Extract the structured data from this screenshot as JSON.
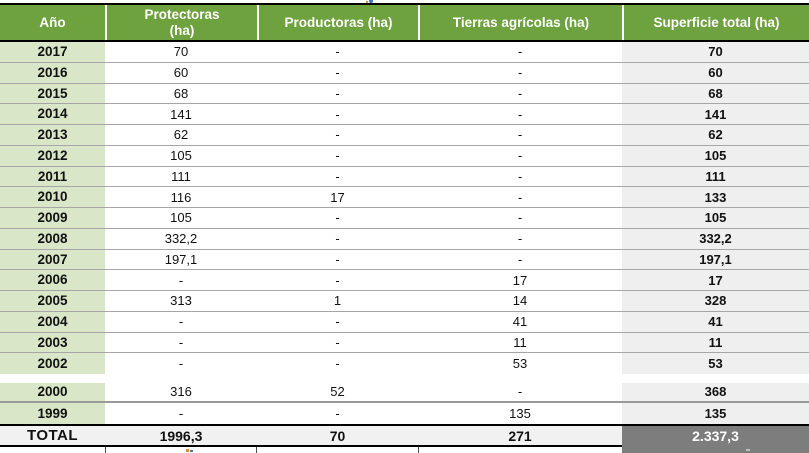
{
  "table": {
    "headers": [
      {
        "id": "year",
        "label": "Año"
      },
      {
        "id": "protectoras",
        "label": "Protectoras\n(ha)"
      },
      {
        "id": "productoras",
        "label": "Productoras (ha)"
      },
      {
        "id": "tierras",
        "label": "Tierras agrícolas (ha)"
      },
      {
        "id": "total",
        "label": "Superficie total (ha)"
      }
    ],
    "rows": [
      {
        "year": "2017",
        "protectoras": "70",
        "productoras": "-",
        "tierras": "-",
        "total": "70"
      },
      {
        "year": "2016",
        "protectoras": "60",
        "productoras": "-",
        "tierras": "-",
        "total": "60"
      },
      {
        "year": "2015",
        "protectoras": "68",
        "productoras": "-",
        "tierras": "-",
        "total": "68"
      },
      {
        "year": "2014",
        "protectoras": "141",
        "productoras": "-",
        "tierras": "-",
        "total": "141"
      },
      {
        "year": "2013",
        "protectoras": "62",
        "productoras": "-",
        "tierras": "-",
        "total": "62"
      },
      {
        "year": "2012",
        "protectoras": "105",
        "productoras": "-",
        "tierras": "-",
        "total": "105"
      },
      {
        "year": "2011",
        "protectoras": "111",
        "productoras": "-",
        "tierras": "-",
        "total": "111"
      },
      {
        "year": "2010",
        "protectoras": "116",
        "productoras": "17",
        "tierras": "-",
        "total": "133"
      },
      {
        "year": "2009",
        "protectoras": "105",
        "productoras": "-",
        "tierras": "-",
        "total": "105"
      },
      {
        "year": "2008",
        "protectoras": "332,2",
        "productoras": "-",
        "tierras": "-",
        "total": "332,2"
      },
      {
        "year": "2007",
        "protectoras": "197,1",
        "productoras": "-",
        "tierras": "-",
        "total": "197,1"
      },
      {
        "year": "2006",
        "protectoras": "-",
        "productoras": "-",
        "tierras": "17",
        "total": "17"
      },
      {
        "year": "2005",
        "protectoras": "313",
        "productoras": "1",
        "tierras": "14",
        "total": "328"
      },
      {
        "year": "2004",
        "protectoras": "-",
        "productoras": "-",
        "tierras": "41",
        "total": "41"
      },
      {
        "year": "2003",
        "protectoras": "-",
        "productoras": "-",
        "tierras": "11",
        "total": "11"
      },
      {
        "year": "2002",
        "protectoras": "-",
        "productoras": "-",
        "tierras": "53",
        "total": "53"
      },
      {
        "spacer": true
      },
      {
        "year": "2000",
        "protectoras": "316",
        "productoras": "52",
        "tierras": "-",
        "total": "368"
      },
      {
        "year": "1999",
        "protectoras": "-",
        "productoras": "-",
        "tierras": "135",
        "total": "135"
      }
    ],
    "total_row": {
      "year": "TOTAL",
      "protectoras": "1996,3",
      "productoras": "70",
      "tierras": "271",
      "total": "2.337,3"
    }
  },
  "colors": {
    "header_bg": "#6ea23e",
    "header_text": "#ffffff",
    "year_column_bg": "#d9e7c8",
    "total_column_bg": "#efefef",
    "total_row_bg": "#f1f1f1",
    "grand_total_bg": "#7d7d7d",
    "grand_total_text": "#ffffff",
    "row_separator": "#a6a6a6",
    "table_border": "#000000"
  }
}
